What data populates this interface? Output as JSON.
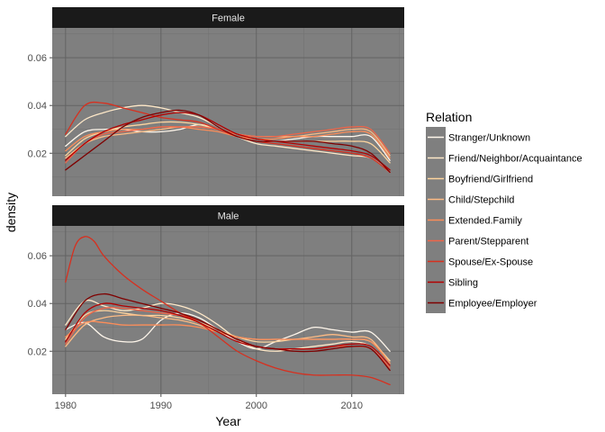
{
  "chart_data": {
    "type": "line",
    "xlabel": "Year",
    "ylabel": "density",
    "xlim": [
      1978.6,
      2015.5
    ],
    "ylim": [
      0.002,
      0.0725
    ],
    "xticks": [
      1980,
      1990,
      2000,
      2010
    ],
    "yticks": [
      0.02,
      0.04,
      0.06
    ],
    "legend": {
      "title": "Relation",
      "position": "right"
    },
    "panels": [
      {
        "name": "Female",
        "series": [
          {
            "name": "Stranger/Unknown",
            "color": "#FFF7EC",
            "x": [
              1980,
              1982,
              1984,
              1986,
              1988,
              1990,
              1992,
              1994,
              1996,
              1998,
              2000,
              2002,
              2004,
              2006,
              2008,
              2010,
              2012,
              2014
            ],
            "values": [
              0.023,
              0.029,
              0.03,
              0.03,
              0.029,
              0.029,
              0.03,
              0.032,
              0.03,
              0.027,
              0.025,
              0.025,
              0.026,
              0.027,
              0.027,
              0.027,
              0.027,
              0.017
            ]
          },
          {
            "name": "Friend/Neighbor/Acquaintance",
            "color": "#FEE8C8",
            "x": [
              1980,
              1982,
              1984,
              1986,
              1988,
              1990,
              1992,
              1994,
              1996,
              1998,
              2000,
              2002,
              2004,
              2006,
              2008,
              2010,
              2012,
              2014
            ],
            "values": [
              0.027,
              0.034,
              0.037,
              0.039,
              0.04,
              0.039,
              0.037,
              0.035,
              0.031,
              0.027,
              0.024,
              0.023,
              0.022,
              0.021,
              0.02,
              0.019,
              0.018,
              0.012
            ]
          },
          {
            "name": "Boyfriend/Girlfriend",
            "color": "#FDD49E",
            "x": [
              1980,
              1982,
              1984,
              1986,
              1988,
              1990,
              1992,
              1994,
              1996,
              1998,
              2000,
              2002,
              2004,
              2006,
              2008,
              2010,
              2012,
              2014
            ],
            "values": [
              0.019,
              0.026,
              0.029,
              0.031,
              0.032,
              0.033,
              0.033,
              0.032,
              0.03,
              0.028,
              0.026,
              0.025,
              0.025,
              0.025,
              0.025,
              0.025,
              0.024,
              0.016
            ]
          },
          {
            "name": "Child/Stepchild",
            "color": "#FDBB84",
            "x": [
              1980,
              1982,
              1984,
              1986,
              1988,
              1990,
              1992,
              1994,
              1996,
              1998,
              2000,
              2002,
              2004,
              2006,
              2008,
              2010,
              2012,
              2014
            ],
            "values": [
              0.018,
              0.024,
              0.027,
              0.028,
              0.029,
              0.03,
              0.031,
              0.031,
              0.03,
              0.028,
              0.027,
              0.027,
              0.027,
              0.028,
              0.029,
              0.03,
              0.029,
              0.019
            ]
          },
          {
            "name": "Extended.Family",
            "color": "#FC8D59",
            "x": [
              1980,
              1982,
              1984,
              1986,
              1988,
              1990,
              1992,
              1994,
              1996,
              1998,
              2000,
              2002,
              2004,
              2006,
              2008,
              2010,
              2012,
              2014
            ],
            "values": [
              0.021,
              0.027,
              0.029,
              0.03,
              0.03,
              0.031,
              0.031,
              0.03,
              0.029,
              0.027,
              0.026,
              0.026,
              0.027,
              0.027,
              0.028,
              0.029,
              0.028,
              0.018
            ]
          },
          {
            "name": "Parent/Stepparent",
            "color": "#EF6548",
            "x": [
              1980,
              1982,
              1984,
              1986,
              1988,
              1990,
              1992,
              1994,
              1996,
              1998,
              2000,
              2002,
              2004,
              2006,
              2008,
              2010,
              2012,
              2014
            ],
            "values": [
              0.016,
              0.024,
              0.028,
              0.029,
              0.03,
              0.031,
              0.031,
              0.031,
              0.03,
              0.028,
              0.027,
              0.027,
              0.028,
              0.029,
              0.03,
              0.031,
              0.03,
              0.02
            ]
          },
          {
            "name": "Spouse/Ex-Spouse",
            "color": "#D7301F",
            "x": [
              1980,
              1982,
              1984,
              1986,
              1988,
              1990,
              1992,
              1994,
              1996,
              1998,
              2000,
              2002,
              2004,
              2006,
              2008,
              2010,
              2012,
              2014
            ],
            "values": [
              0.028,
              0.04,
              0.041,
              0.039,
              0.037,
              0.035,
              0.034,
              0.033,
              0.03,
              0.027,
              0.025,
              0.024,
              0.023,
              0.022,
              0.021,
              0.02,
              0.018,
              0.012
            ]
          },
          {
            "name": "Sibling",
            "color": "#B30000",
            "x": [
              1980,
              1982,
              1984,
              1986,
              1988,
              1990,
              1992,
              1994,
              1996,
              1998,
              2000,
              2002,
              2004,
              2006,
              2008,
              2010,
              2012,
              2014
            ],
            "values": [
              0.017,
              0.024,
              0.029,
              0.032,
              0.034,
              0.036,
              0.037,
              0.036,
              0.032,
              0.028,
              0.026,
              0.025,
              0.024,
              0.023,
              0.022,
              0.021,
              0.019,
              0.013
            ]
          },
          {
            "name": "Employee/Employer",
            "color": "#7F0000",
            "x": [
              1980,
              1982,
              1984,
              1986,
              1988,
              1990,
              1992,
              1994,
              1996,
              1998,
              2000,
              2002,
              2004,
              2006,
              2008,
              2010,
              2012,
              2014
            ],
            "values": [
              0.013,
              0.019,
              0.025,
              0.031,
              0.035,
              0.037,
              0.038,
              0.036,
              0.031,
              0.027,
              0.025,
              0.025,
              0.025,
              0.025,
              0.024,
              0.023,
              0.02,
              0.012
            ]
          }
        ]
      },
      {
        "name": "Male",
        "series": [
          {
            "name": "Stranger/Unknown",
            "color": "#FFF7EC",
            "x": [
              1980,
              1982,
              1984,
              1986,
              1988,
              1990,
              1992,
              1994,
              1996,
              1998,
              2000,
              2002,
              2004,
              2006,
              2008,
              2010,
              2012,
              2014
            ],
            "values": [
              0.029,
              0.032,
              0.026,
              0.024,
              0.025,
              0.033,
              0.036,
              0.034,
              0.029,
              0.024,
              0.021,
              0.024,
              0.027,
              0.03,
              0.029,
              0.028,
              0.028,
              0.02
            ]
          },
          {
            "name": "Friend/Neighbor/Acquaintance",
            "color": "#FEE8C8",
            "x": [
              1980,
              1982,
              1984,
              1986,
              1988,
              1990,
              1992,
              1994,
              1996,
              1998,
              2000,
              2002,
              2004,
              2006,
              2008,
              2010,
              2012,
              2014
            ],
            "values": [
              0.031,
              0.041,
              0.039,
              0.037,
              0.038,
              0.04,
              0.039,
              0.036,
              0.031,
              0.025,
              0.021,
              0.02,
              0.021,
              0.022,
              0.023,
              0.024,
              0.022,
              0.014
            ]
          },
          {
            "name": "Boyfriend/Girlfriend",
            "color": "#FDD49E",
            "x": [
              1980,
              1982,
              1984,
              1986,
              1988,
              1990,
              1992,
              1994,
              1996,
              1998,
              2000,
              2002,
              2004,
              2006,
              2008,
              2010,
              2012,
              2014
            ],
            "values": [
              0.025,
              0.035,
              0.037,
              0.036,
              0.035,
              0.035,
              0.034,
              0.032,
              0.029,
              0.026,
              0.024,
              0.024,
              0.025,
              0.025,
              0.025,
              0.025,
              0.024,
              0.016
            ]
          },
          {
            "name": "Child/Stepchild",
            "color": "#FDBB84",
            "x": [
              1980,
              1982,
              1984,
              1986,
              1988,
              1990,
              1992,
              1994,
              1996,
              1998,
              2000,
              2002,
              2004,
              2006,
              2008,
              2010,
              2012,
              2014
            ],
            "values": [
              0.022,
              0.031,
              0.034,
              0.035,
              0.035,
              0.034,
              0.033,
              0.031,
              0.028,
              0.026,
              0.025,
              0.025,
              0.025,
              0.026,
              0.027,
              0.026,
              0.025,
              0.015
            ]
          },
          {
            "name": "Extended.Family",
            "color": "#FC8D59",
            "x": [
              1980,
              1982,
              1984,
              1986,
              1988,
              1990,
              1992,
              1994,
              1996,
              1998,
              2000,
              2002,
              2004,
              2006,
              2008,
              2010,
              2012,
              2014
            ],
            "values": [
              0.026,
              0.032,
              0.032,
              0.031,
              0.031,
              0.031,
              0.031,
              0.03,
              0.028,
              0.026,
              0.025,
              0.025,
              0.025,
              0.025,
              0.025,
              0.025,
              0.024,
              0.015
            ]
          },
          {
            "name": "Parent/Stepparent",
            "color": "#EF6548",
            "x": [
              1980,
              1982,
              1984,
              1986,
              1988,
              1990,
              1992,
              1994,
              1996,
              1998,
              2000,
              2002,
              2004,
              2006,
              2008,
              2010,
              2012,
              2014
            ],
            "values": [
              0.023,
              0.034,
              0.038,
              0.038,
              0.037,
              0.036,
              0.035,
              0.033,
              0.029,
              0.025,
              0.022,
              0.021,
              0.021,
              0.021,
              0.022,
              0.022,
              0.021,
              0.013
            ]
          },
          {
            "name": "Spouse/Ex-Spouse",
            "color": "#D7301F",
            "x": [
              1980,
              1981,
              1982,
              1983,
              1984,
              1986,
              1988,
              1990,
              1992,
              1994,
              1996,
              1998,
              2000,
              2002,
              2004,
              2006,
              2008,
              2010,
              2012,
              2014
            ],
            "values": [
              0.049,
              0.064,
              0.068,
              0.066,
              0.06,
              0.052,
              0.046,
              0.041,
              0.036,
              0.032,
              0.026,
              0.02,
              0.016,
              0.013,
              0.011,
              0.01,
              0.01,
              0.01,
              0.009,
              0.006
            ]
          },
          {
            "name": "Sibling",
            "color": "#B30000",
            "x": [
              1980,
              1982,
              1984,
              1986,
              1988,
              1990,
              1992,
              1994,
              1996,
              1998,
              2000,
              2002,
              2004,
              2006,
              2008,
              2010,
              2012,
              2014
            ],
            "values": [
              0.024,
              0.036,
              0.04,
              0.039,
              0.038,
              0.037,
              0.035,
              0.032,
              0.028,
              0.024,
              0.022,
              0.021,
              0.021,
              0.021,
              0.022,
              0.023,
              0.022,
              0.014
            ]
          },
          {
            "name": "Employee/Employer",
            "color": "#7F0000",
            "x": [
              1980,
              1982,
              1984,
              1986,
              1988,
              1990,
              1992,
              1994,
              1996,
              1998,
              2000,
              2002,
              2004,
              2006,
              2008,
              2010,
              2012,
              2014
            ],
            "values": [
              0.029,
              0.041,
              0.044,
              0.042,
              0.04,
              0.038,
              0.036,
              0.033,
              0.029,
              0.025,
              0.022,
              0.021,
              0.02,
              0.02,
              0.021,
              0.022,
              0.021,
              0.012
            ]
          }
        ]
      }
    ]
  }
}
